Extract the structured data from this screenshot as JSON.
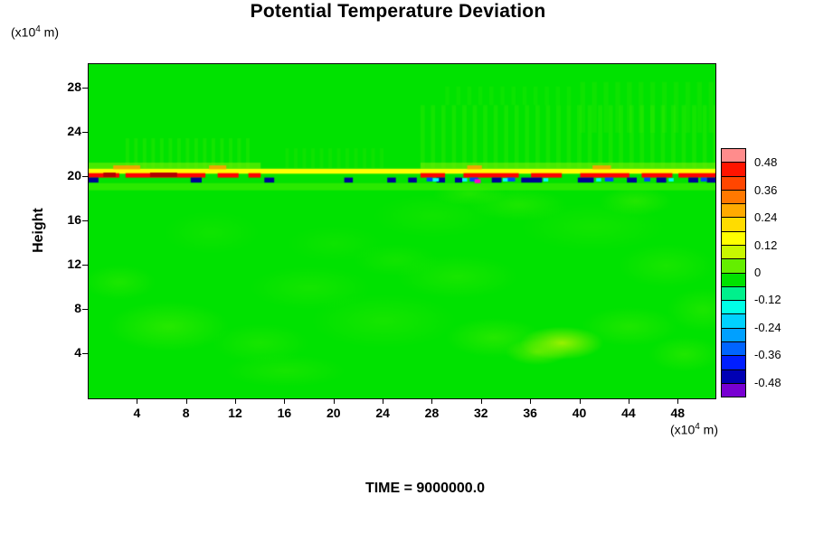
{
  "chart_data": {
    "type": "heatmap",
    "title": "Potential Temperature Deviation",
    "ylabel": "Height",
    "axis_unit": {
      "prefix": "(x10",
      "sup": "4",
      "suffix": " m)"
    },
    "time_label": "TIME = 9000000.0",
    "xlim": [
      0,
      51
    ],
    "ylim": [
      0,
      30.2
    ],
    "x_ticks": [
      4,
      8,
      12,
      16,
      20,
      24,
      28,
      32,
      36,
      40,
      44,
      48
    ],
    "y_ticks": [
      4,
      8,
      12,
      16,
      20,
      24,
      28
    ],
    "field_background": {
      "value": 0,
      "color": "#00e200"
    },
    "colorbar": {
      "vmax": 0.54,
      "vmin": -0.54,
      "tick_labels": [
        "0.48",
        "0.36",
        "0.24",
        "0.12",
        "0",
        "-0.12",
        "-0.24",
        "-0.36",
        "-0.48"
      ],
      "segment_colors": [
        "#ff8c8c",
        "#ff1400",
        "#ff4600",
        "#ff7800",
        "#ffaa00",
        "#ffdc00",
        "#ffff00",
        "#c8f800",
        "#64ee00",
        "#00e200",
        "#00f08c",
        "#00ffe6",
        "#00d2ff",
        "#00a0ff",
        "#0064ff",
        "#001eff",
        "#0000b4",
        "#7800d2"
      ]
    },
    "features": {
      "description": "Near-zero (green) deviation field everywhere except a thin multicolored perturbation band at height ~20x10^4 m, with faint wave ripples above the band and mottled lighter-green patches below",
      "critical_level_height": 20,
      "blobs": [
        {
          "x": 6.5,
          "y": 6.5,
          "rx": 5,
          "ry": 2.3,
          "c": "#46ee00",
          "a": 0.55
        },
        {
          "x": 2.5,
          "y": 10.5,
          "rx": 3,
          "ry": 1.6,
          "c": "#46ee00",
          "a": 0.4
        },
        {
          "x": 14,
          "y": 5,
          "rx": 4,
          "ry": 1.8,
          "c": "#3aec00",
          "a": 0.4
        },
        {
          "x": 18,
          "y": 10,
          "rx": 5,
          "ry": 2,
          "c": "#3aec00",
          "a": 0.35
        },
        {
          "x": 24,
          "y": 7,
          "rx": 6,
          "ry": 2.5,
          "c": "#40ec00",
          "a": 0.35
        },
        {
          "x": 30,
          "y": 11,
          "rx": 5,
          "ry": 2,
          "c": "#46ee00",
          "a": 0.35
        },
        {
          "x": 33,
          "y": 5.5,
          "rx": 4,
          "ry": 1.8,
          "c": "#52f000",
          "a": 0.45
        },
        {
          "x": 38.5,
          "y": 5,
          "rx": 3.4,
          "ry": 1.5,
          "c": "#b4f400",
          "a": 0.85
        },
        {
          "x": 36.5,
          "y": 4.2,
          "rx": 2.6,
          "ry": 1.2,
          "c": "#8cf200",
          "a": 0.6
        },
        {
          "x": 44,
          "y": 6.5,
          "rx": 4,
          "ry": 1.8,
          "c": "#4cee00",
          "a": 0.4
        },
        {
          "x": 48.5,
          "y": 4,
          "rx": 3,
          "ry": 1.6,
          "c": "#46ee00",
          "a": 0.45
        },
        {
          "x": 47,
          "y": 12,
          "rx": 4,
          "ry": 2,
          "c": "#46ee00",
          "a": 0.35
        },
        {
          "x": 41,
          "y": 15.5,
          "rx": 6,
          "ry": 2.2,
          "c": "#3cec00",
          "a": 0.3
        },
        {
          "x": 28,
          "y": 16.5,
          "rx": 5,
          "ry": 2,
          "c": "#36ea00",
          "a": 0.3
        },
        {
          "x": 10,
          "y": 15,
          "rx": 4,
          "ry": 2,
          "c": "#32ea00",
          "a": 0.3
        },
        {
          "x": 20,
          "y": 14,
          "rx": 4,
          "ry": 1.7,
          "c": "#36ea00",
          "a": 0.25
        },
        {
          "x": 50,
          "y": 8,
          "rx": 3,
          "ry": 2,
          "c": "#46ee00",
          "a": 0.4
        },
        {
          "x": 35,
          "y": 17.5,
          "rx": 4,
          "ry": 1.5,
          "c": "#52f000",
          "a": 0.35
        },
        {
          "x": 25,
          "y": 12.5,
          "rx": 3.5,
          "ry": 1.5,
          "c": "#3cec00",
          "a": 0.3
        },
        {
          "x": 44.5,
          "y": 17.8,
          "rx": 3,
          "ry": 1.3,
          "c": "#58f000",
          "a": 0.4
        },
        {
          "x": 31,
          "y": 18.5,
          "rx": 3,
          "ry": 1.1,
          "c": "#58f000",
          "a": 0.35
        },
        {
          "x": 16,
          "y": 2.5,
          "rx": 5,
          "ry": 1.5,
          "c": "#40ec00",
          "a": 0.35
        }
      ],
      "ripples": [
        {
          "x0": 3,
          "x1": 13,
          "y0": 20.8,
          "y1": 23.5,
          "spacing": 0.7,
          "width": 0.3,
          "color": "#69f200",
          "alpha": 0.18
        },
        {
          "x0": 16,
          "x1": 24,
          "y0": 20.8,
          "y1": 22.6,
          "spacing": 0.7,
          "width": 0.3,
          "color": "#69f200",
          "alpha": 0.12
        },
        {
          "x0": 27,
          "x1": 51,
          "y0": 20.8,
          "y1": 26.5,
          "spacing": 0.85,
          "width": 0.35,
          "color": "#69f200",
          "alpha": 0.18
        },
        {
          "x0": 40,
          "x1": 51,
          "y0": 24,
          "y1": 28.6,
          "spacing": 0.95,
          "width": 0.4,
          "color": "#69f200",
          "alpha": 0.13
        },
        {
          "x0": 29,
          "x1": 39,
          "y0": 26.5,
          "y1": 28.2,
          "spacing": 0.9,
          "width": 0.35,
          "color": "#69f200",
          "alpha": 0.1
        }
      ],
      "band_layers": [
        {
          "name": "light-under",
          "y0": 18.8,
          "y1": 19.45,
          "color": "#4cee00",
          "alpha": 0.55,
          "xs": [
            [
              0,
              51
            ]
          ]
        },
        {
          "name": "above-glow",
          "y0": 20.75,
          "y1": 21.3,
          "color": "#8cf200",
          "alpha": 0.5,
          "xs": [
            [
              0,
              14
            ],
            [
              27,
              51
            ]
          ]
        },
        {
          "name": "yellow-line",
          "y0": 20.3,
          "y1": 20.75,
          "color": "#ffff00",
          "alpha": 1,
          "xs": [
            [
              0,
              51
            ]
          ]
        },
        {
          "name": "orange",
          "y0": 20.7,
          "y1": 21.05,
          "color": "#ffa000",
          "alpha": 0.9,
          "xs": [
            [
              2,
              4.2
            ],
            [
              9.8,
              11.2
            ],
            [
              30.8,
              32
            ],
            [
              41,
              42.5
            ]
          ]
        },
        {
          "name": "red",
          "y0": 19.95,
          "y1": 20.35,
          "color": "#ff0000",
          "alpha": 1,
          "xs": [
            [
              0,
              2.5
            ],
            [
              3,
              9.5
            ],
            [
              10.5,
              12.2
            ],
            [
              13,
              14
            ],
            [
              27,
              29
            ],
            [
              30.5,
              35
            ],
            [
              36,
              38.5
            ],
            [
              40,
              44
            ],
            [
              45,
              47.5
            ],
            [
              48,
              51
            ]
          ]
        },
        {
          "name": "dark-red",
          "y0": 20.0,
          "y1": 20.4,
          "color": "#b40000",
          "alpha": 1,
          "xs": [
            [
              1.2,
              2.2
            ],
            [
              5,
              7.2
            ]
          ]
        },
        {
          "name": "navy",
          "y0": 19.5,
          "y1": 19.95,
          "color": "#000096",
          "alpha": 1,
          "xs": [
            [
              0,
              0.8
            ],
            [
              8.3,
              9.2
            ],
            [
              14.3,
              15.1
            ],
            [
              20.8,
              21.5
            ],
            [
              24.3,
              25
            ],
            [
              26,
              26.7
            ],
            [
              28.3,
              29
            ],
            [
              29.8,
              30.4
            ],
            [
              32.8,
              33.6
            ],
            [
              35.2,
              36.9
            ],
            [
              39.8,
              41.1
            ],
            [
              43.8,
              44.6
            ],
            [
              46.2,
              47
            ],
            [
              48.8,
              49.6
            ],
            [
              50.3,
              51
            ]
          ]
        },
        {
          "name": "blue",
          "y0": 19.6,
          "y1": 19.95,
          "color": "#0041ff",
          "alpha": 1,
          "xs": [
            [
              27.5,
              28
            ],
            [
              31,
              31.7
            ],
            [
              34,
              34.7
            ],
            [
              42,
              42.7
            ],
            [
              45.2,
              45.7
            ],
            [
              49.8,
              50.3
            ]
          ]
        },
        {
          "name": "cyan",
          "y0": 19.6,
          "y1": 19.9,
          "color": "#00ffff",
          "alpha": 1,
          "xs": [
            [
              28,
              28.5
            ],
            [
              30.4,
              30.8
            ],
            [
              33.7,
              34.1
            ],
            [
              37,
              37.4
            ],
            [
              41.3,
              41.7
            ],
            [
              47.2,
              47.6
            ]
          ]
        },
        {
          "name": "magenta",
          "y0": 19.45,
          "y1": 19.8,
          "color": "#ff00c8",
          "alpha": 1,
          "xs": [
            [
              31.4,
              31.9
            ]
          ]
        }
      ]
    }
  }
}
